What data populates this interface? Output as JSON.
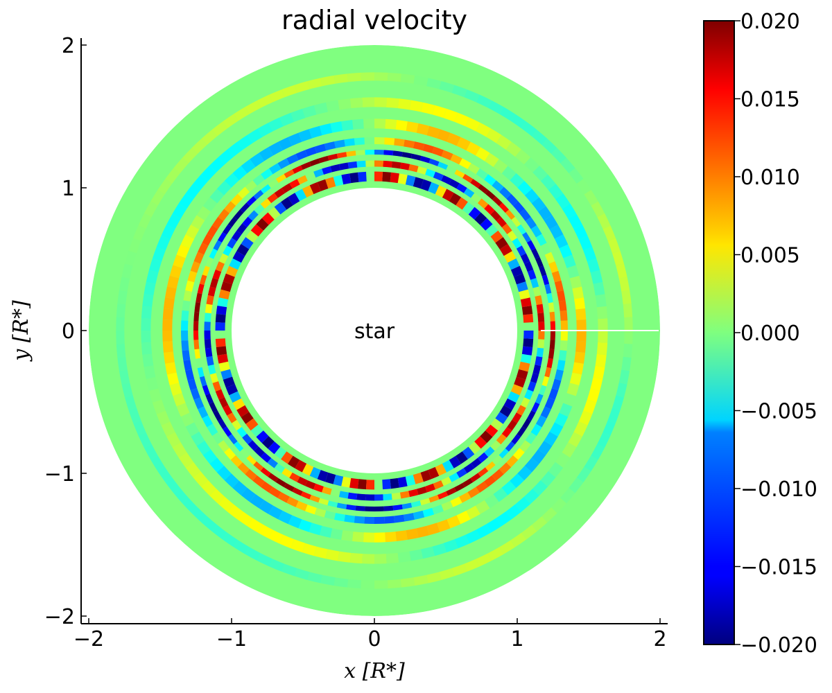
{
  "chart_data": {
    "type": "heatmap",
    "geometry": "annulus",
    "title": "radial velocity",
    "xlabel": "x [R_*]",
    "ylabel": "y [R_*]",
    "xlabel_display": "x [R*]",
    "ylabel_display": "y [R*]",
    "xlim": [
      -2.05,
      2.05
    ],
    "ylim": [
      -2.05,
      2.05
    ],
    "x_ticks": [
      -2,
      -1,
      0,
      1,
      2
    ],
    "y_ticks": [
      -2,
      -1,
      0,
      1,
      2
    ],
    "x_tick_labels": [
      "−2",
      "−1",
      "0",
      "1",
      "2"
    ],
    "y_tick_labels": [
      "−2",
      "−1",
      "0",
      "1",
      "2"
    ],
    "grid": false,
    "field": {
      "inner_radius": 1.0,
      "outer_radius": 2.0,
      "units": "R_*",
      "dominant_value": 0.0,
      "range": [
        -0.02,
        0.02
      ],
      "structure": "spiral density-wave pattern with strongest positive/negative velocity bands near r ≈ 1.1–1.3, weaker wide spiral arms out to r ≈ 1.8"
    },
    "annotation": {
      "text": "star",
      "x": 0,
      "y": 0
    },
    "colorbar": {
      "colormap": "jet",
      "vmin": -0.02,
      "vmax": 0.02,
      "ticks": [
        0.02,
        0.015,
        0.01,
        0.005,
        0.0,
        -0.005,
        -0.01,
        -0.015,
        -0.02
      ],
      "tick_labels": [
        "0.020",
        "0.015",
        "0.010",
        "0.005",
        "0.000",
        "−0.005",
        "−0.010",
        "−0.015",
        "−0.020"
      ]
    }
  }
}
